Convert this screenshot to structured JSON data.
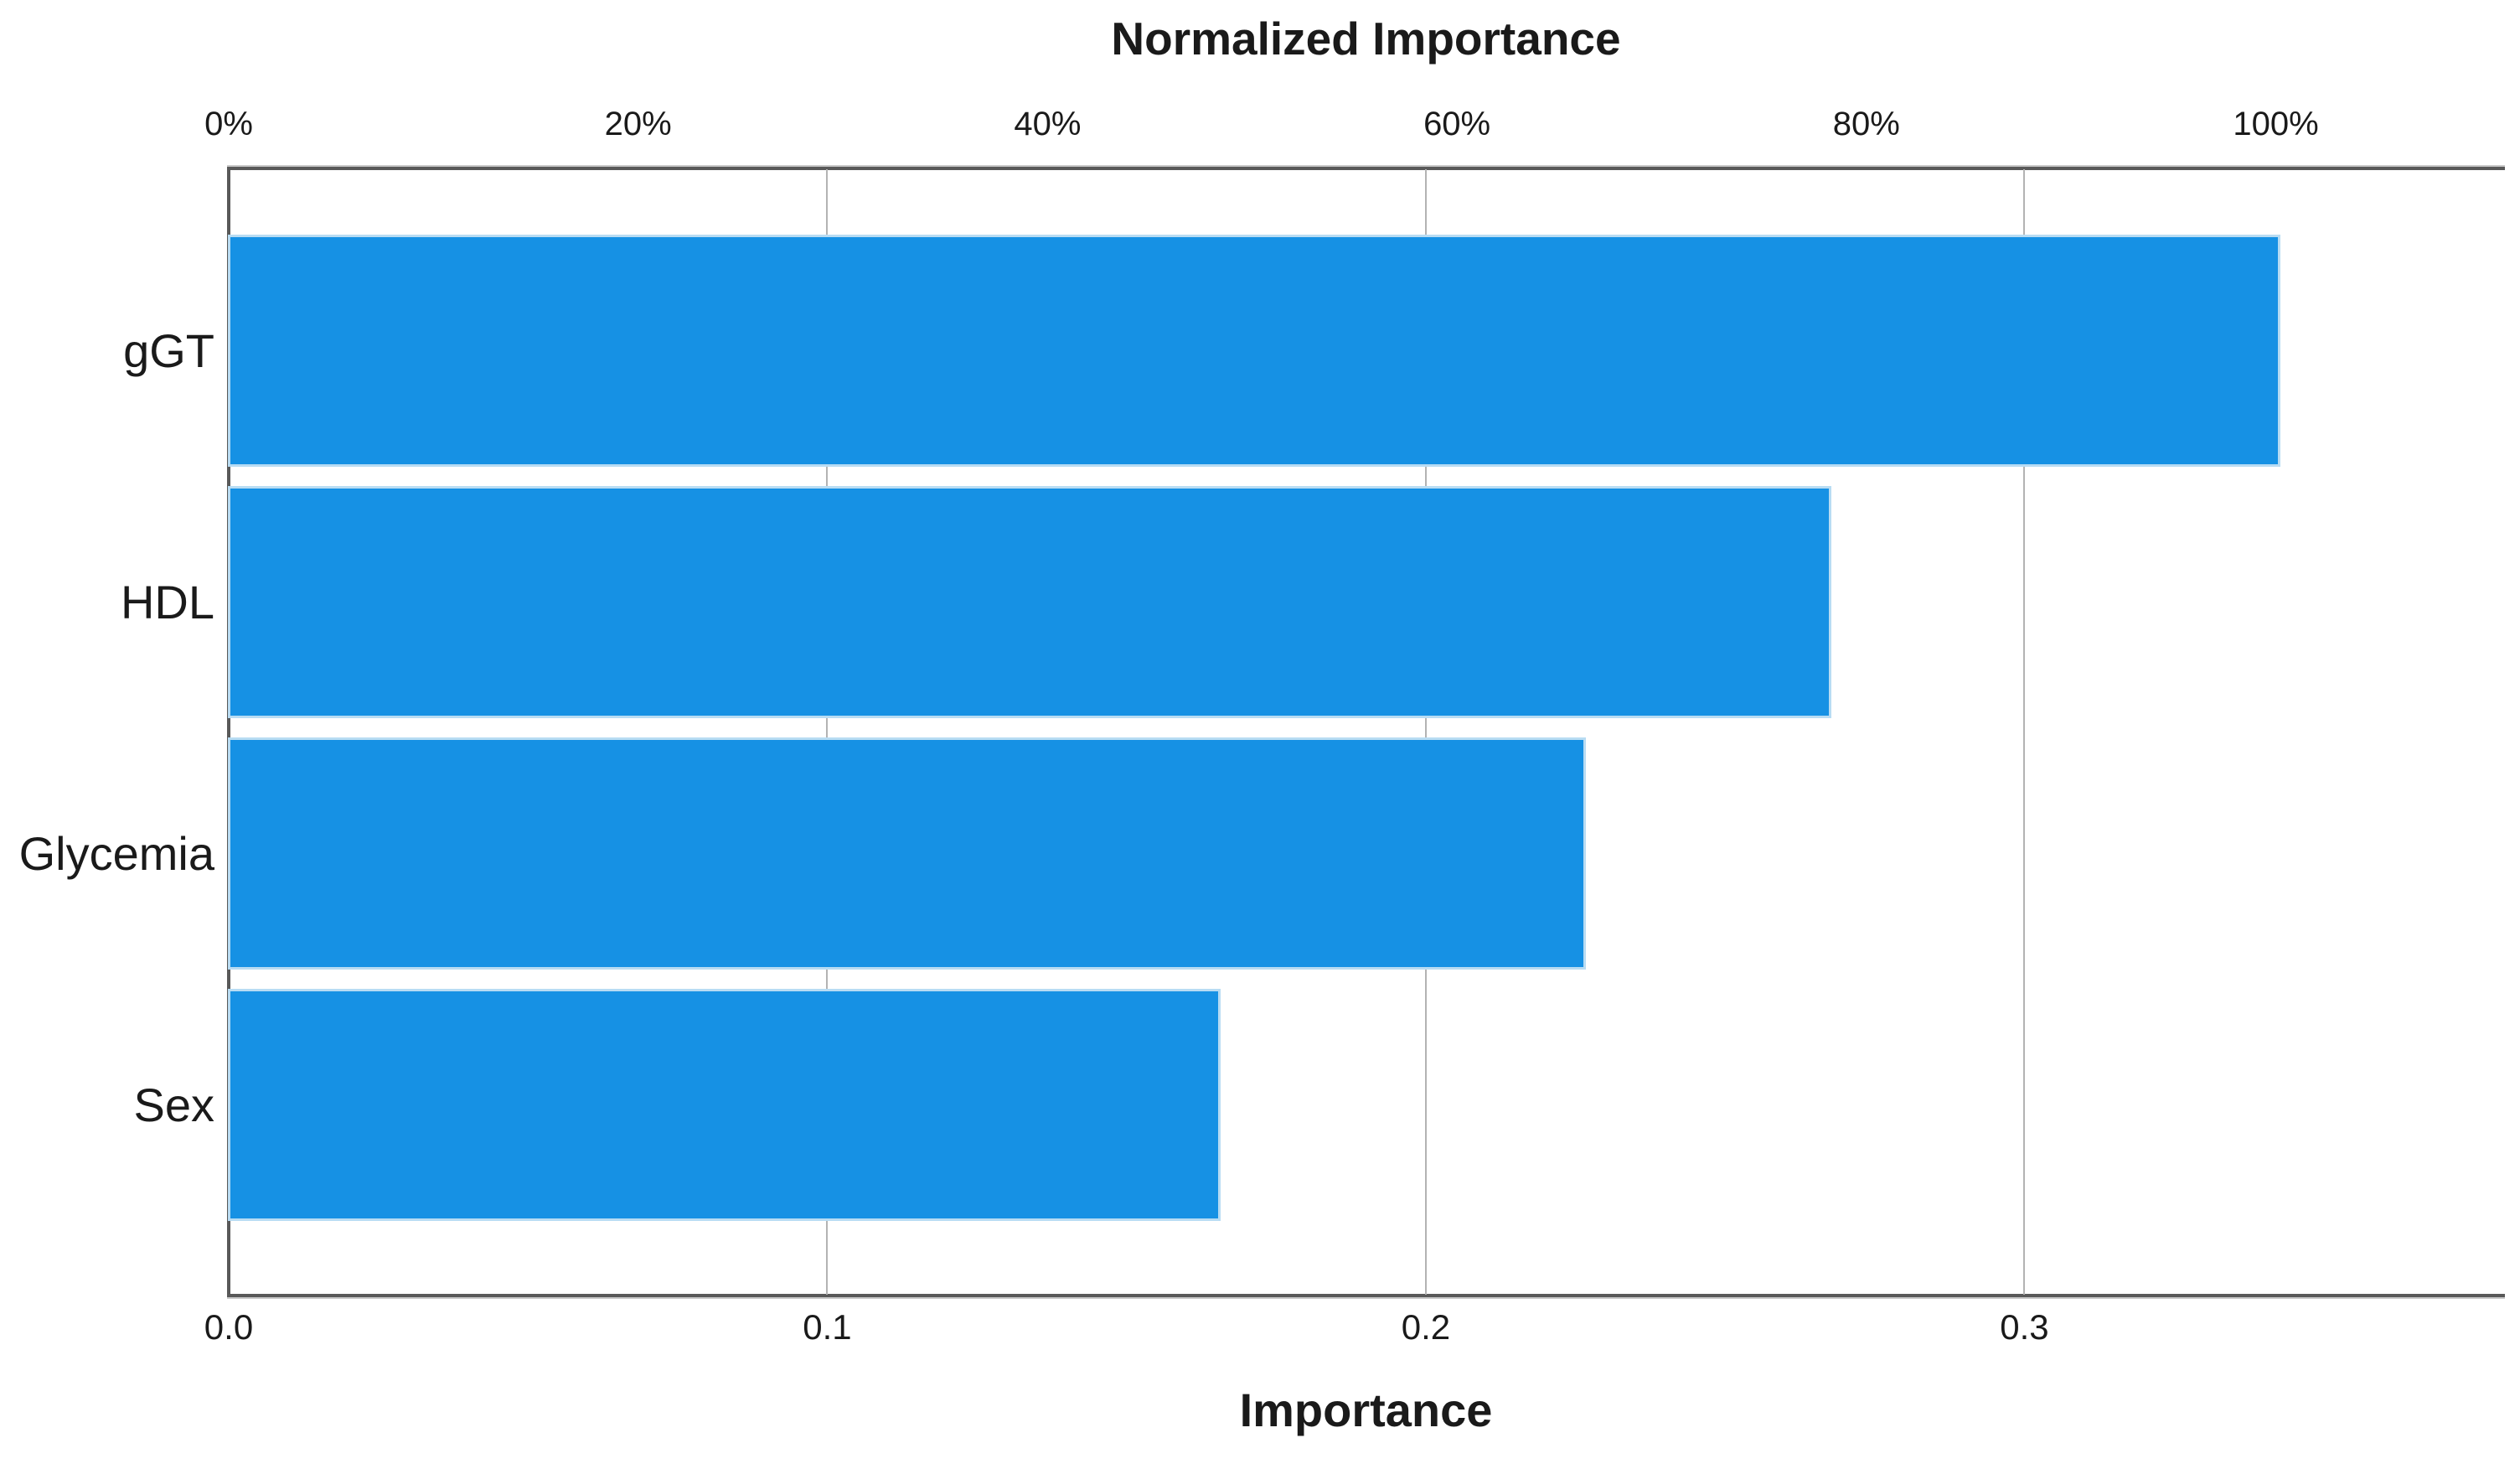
{
  "chart_data": {
    "type": "bar",
    "orientation": "horizontal",
    "title": "Normalized Importance",
    "categories": [
      "gGT",
      "HDL",
      "Glycemia",
      "Sex"
    ],
    "series": [
      {
        "name": "Importance",
        "values": [
          0.342,
          0.267,
          0.226,
          0.165
        ]
      },
      {
        "name": "Normalized Importance",
        "unit": "%",
        "values": [
          100,
          78,
          66,
          48
        ]
      }
    ],
    "bottom_axis": {
      "label": "Importance",
      "tick_labels": [
        "0.0",
        "0.1",
        "0.2",
        "0.3"
      ],
      "tick_values": [
        0.0,
        0.1,
        0.2,
        0.3
      ],
      "range": [
        0.0,
        0.38
      ]
    },
    "top_axis": {
      "label": "Normalized Importance",
      "tick_labels": [
        "0%",
        "20%",
        "40%",
        "60%",
        "80%",
        "100%"
      ],
      "tick_values": [
        0,
        20,
        40,
        60,
        80,
        100
      ],
      "max_importance": 0.342
    },
    "legend": "none",
    "grid": {
      "vertical_at_bottom_ticks": true
    },
    "colors": {
      "bar_fill": "#1691e4",
      "bar_edge": "#b8dcf3",
      "frame": "#595959",
      "gridline": "#b3b3b3",
      "text": "#1a1a1a",
      "background": "#ffffff"
    }
  }
}
